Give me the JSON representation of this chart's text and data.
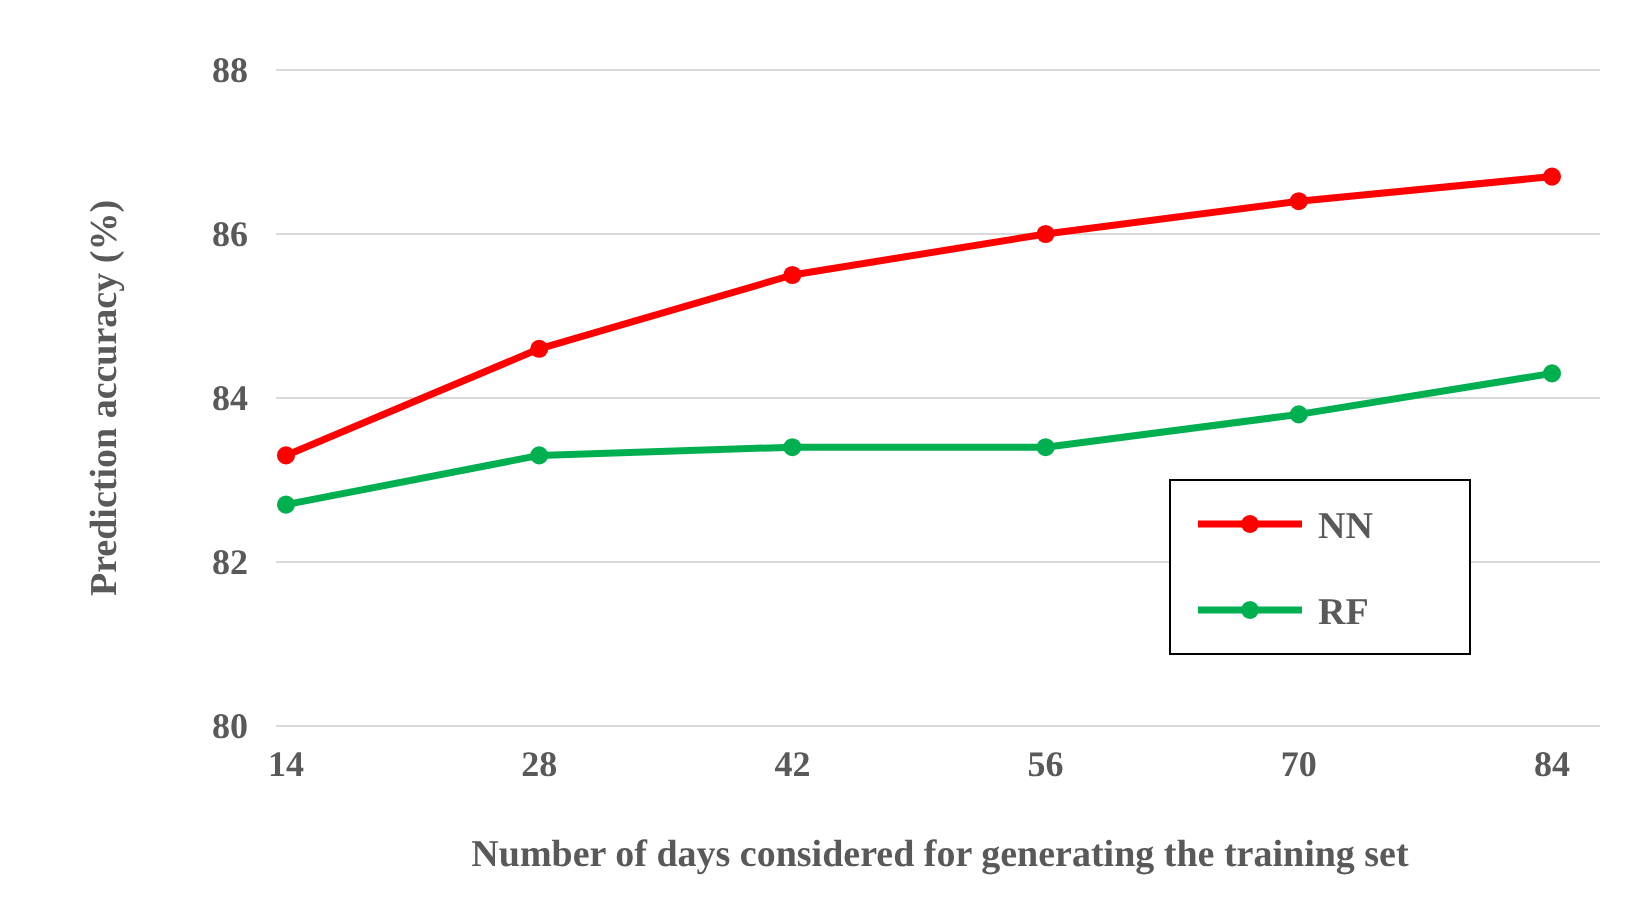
{
  "chart_data": {
    "type": "line",
    "xlabel": "Number of days considered for generating the training set",
    "ylabel": "Prediction accuracy (%)",
    "categories": [
      "14",
      "28",
      "42",
      "56",
      "70",
      "84"
    ],
    "series": [
      {
        "name": "NN",
        "color": "#ff0000",
        "values": [
          83.3,
          84.6,
          85.5,
          86.0,
          86.4,
          86.7
        ]
      },
      {
        "name": "RF",
        "color": "#00b050",
        "values": [
          82.7,
          83.3,
          83.4,
          83.4,
          83.8,
          84.3
        ]
      }
    ],
    "ylim": [
      80,
      88
    ],
    "yticks": [
      80,
      82,
      84,
      86,
      88
    ],
    "grid": "y",
    "legend": "right",
    "marker": "circle",
    "line_style": "solid"
  }
}
